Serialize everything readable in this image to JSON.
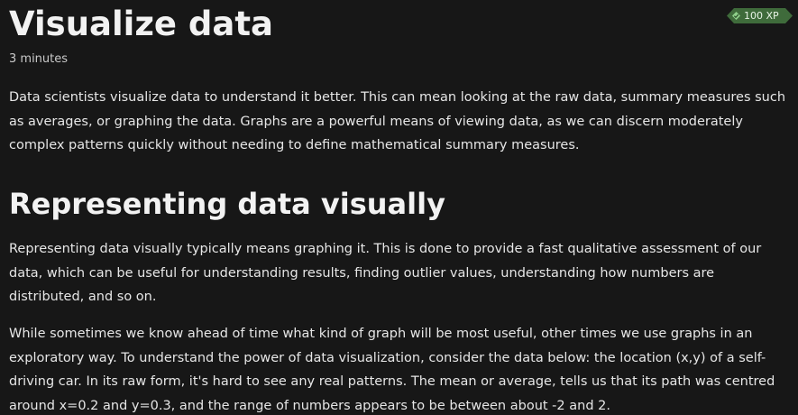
{
  "unit": {
    "title": "Visualize data",
    "duration": "3 minutes",
    "xp": {
      "label": "100 XP",
      "icon": "xp-diamond-icon",
      "color": "#3f6b3b"
    },
    "intro_paragraph": "Data scientists visualize data to understand it better. This can mean looking at the raw data, summary measures such as averages, or graphing the data. Graphs are a powerful means of viewing data, as we can discern moderately complex patterns quickly without needing to define mathematical summary measures."
  },
  "section": {
    "heading": "Representing data visually",
    "paragraphs": [
      "Representing data visually typically means graphing it. This is done to provide a fast qualitative assessment of our data, which can be useful for understanding results, finding outlier values, understanding how numbers are distributed, and so on.",
      "While sometimes we know ahead of time what kind of graph will be most useful, other times we use graphs in an exploratory way. To understand the power of data visualization, consider the data below: the location (x,y) of a self-driving car. In its raw form, it's hard to see any real patterns. The mean or average, tells us that its path was centred around x=0.2 and y=0.3, and the range of numbers appears to be between about -2 and 2."
    ]
  }
}
